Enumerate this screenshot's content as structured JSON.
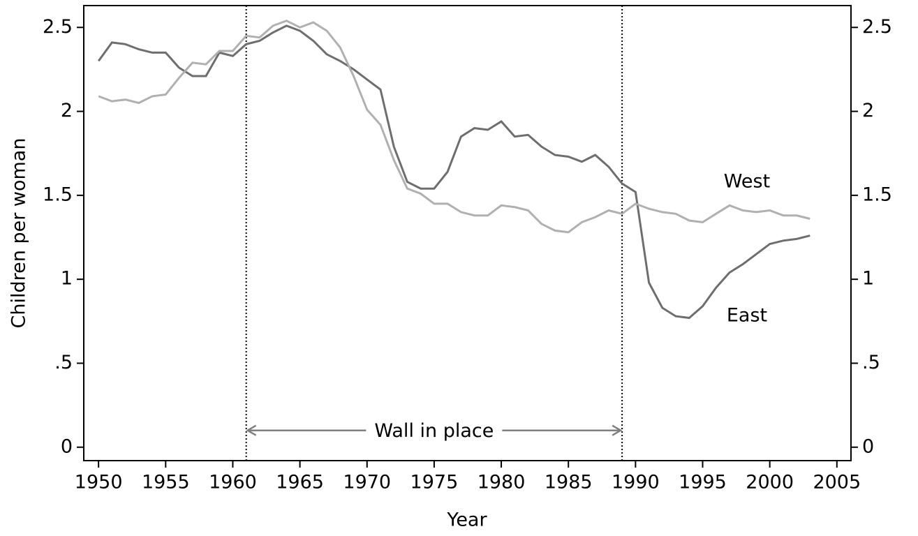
{
  "chart_data": {
    "type": "line",
    "x_label": "Year",
    "y_label": "Children per woman",
    "x": [
      1950,
      1951,
      1952,
      1953,
      1954,
      1955,
      1956,
      1957,
      1958,
      1959,
      1960,
      1961,
      1962,
      1963,
      1964,
      1965,
      1966,
      1967,
      1968,
      1969,
      1970,
      1971,
      1972,
      1973,
      1974,
      1975,
      1976,
      1977,
      1978,
      1979,
      1980,
      1981,
      1982,
      1983,
      1984,
      1985,
      1986,
      1987,
      1988,
      1989,
      1990,
      1991,
      1992,
      1993,
      1994,
      1995,
      1996,
      1997,
      1998,
      1999,
      2000,
      2001,
      2002,
      2003
    ],
    "series": [
      {
        "name": "East",
        "color": "#6e6e6e",
        "values": [
          2.3,
          2.41,
          2.4,
          2.37,
          2.35,
          2.35,
          2.26,
          2.21,
          2.21,
          2.35,
          2.33,
          2.4,
          2.42,
          2.47,
          2.51,
          2.48,
          2.42,
          2.34,
          2.3,
          2.25,
          2.19,
          2.13,
          1.79,
          1.58,
          1.54,
          1.54,
          1.64,
          1.85,
          1.9,
          1.89,
          1.94,
          1.85,
          1.86,
          1.79,
          1.74,
          1.73,
          1.7,
          1.74,
          1.67,
          1.57,
          1.52,
          0.98,
          0.83,
          0.78,
          0.77,
          0.84,
          0.95,
          1.04,
          1.09,
          1.15,
          1.21,
          1.23,
          1.24,
          1.26
        ]
      },
      {
        "name": "West",
        "color": "#b0b0b0",
        "values": [
          2.09,
          2.06,
          2.07,
          2.05,
          2.09,
          2.1,
          2.2,
          2.29,
          2.28,
          2.36,
          2.36,
          2.45,
          2.44,
          2.51,
          2.54,
          2.5,
          2.53,
          2.48,
          2.38,
          2.21,
          2.01,
          1.92,
          1.71,
          1.54,
          1.51,
          1.45,
          1.45,
          1.4,
          1.38,
          1.38,
          1.44,
          1.43,
          1.41,
          1.33,
          1.29,
          1.28,
          1.34,
          1.37,
          1.41,
          1.39,
          1.45,
          1.42,
          1.4,
          1.39,
          1.35,
          1.34,
          1.39,
          1.44,
          1.41,
          1.4,
          1.41,
          1.38,
          1.38,
          1.36
        ]
      }
    ],
    "xlim": [
      1948.9,
      2006.05
    ],
    "xticks": [
      1950,
      1955,
      1960,
      1965,
      1970,
      1975,
      1980,
      1985,
      1990,
      1995,
      2000,
      2005
    ],
    "ylim": [
      -0.08,
      2.63
    ],
    "yticks": [
      0,
      {
        "value": 0.5,
        "label": ".5"
      },
      1,
      1.5,
      2,
      2.5
    ],
    "y2lim": [
      -0.08,
      2.63
    ],
    "y2ticks": [
      0,
      {
        "value": 0.5,
        "label": ".5"
      },
      1,
      1.5,
      2,
      2.5
    ],
    "vlines": [
      1961,
      1989
    ],
    "annotation": {
      "text": "Wall in place",
      "y": 0.1
    }
  }
}
